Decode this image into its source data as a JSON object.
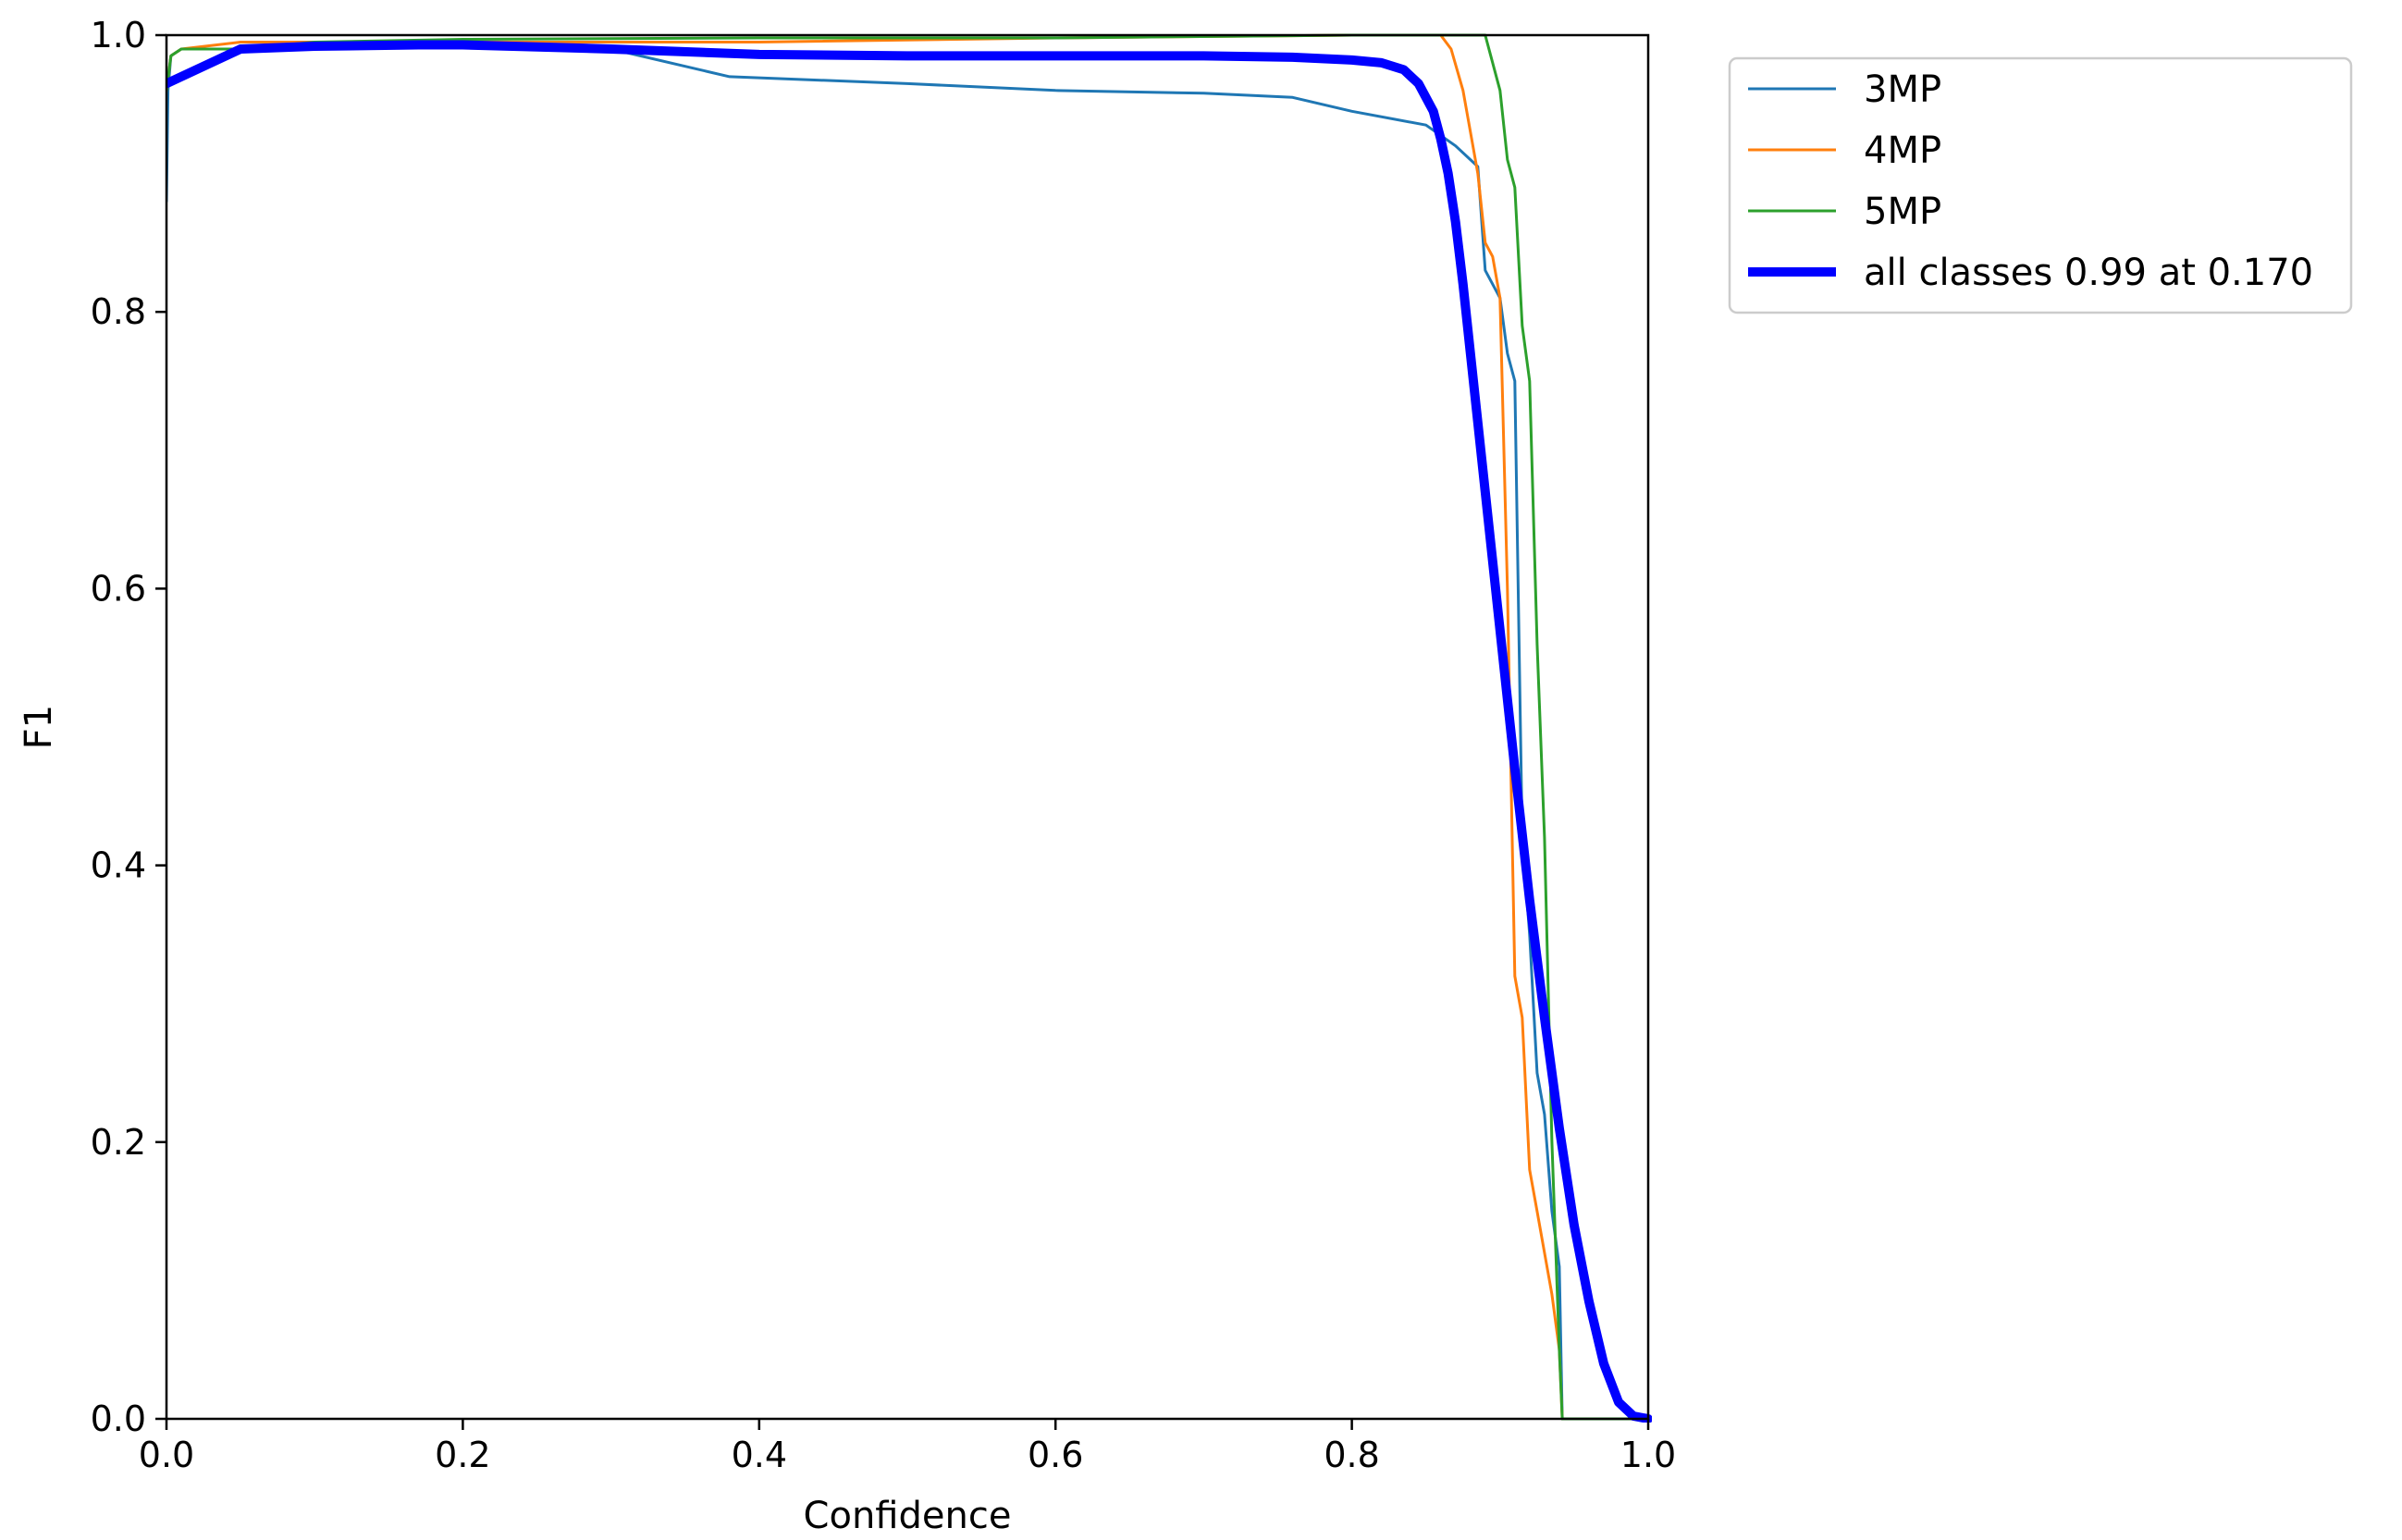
{
  "chart_data": {
    "type": "line",
    "xlabel": "Confidence",
    "ylabel": "F1",
    "xlim": [
      0.0,
      1.0
    ],
    "ylim": [
      0.0,
      1.0
    ],
    "xticks": [
      "0.0",
      "0.2",
      "0.4",
      "0.6",
      "0.8",
      "1.0"
    ],
    "yticks": [
      "0.0",
      "0.2",
      "0.4",
      "0.6",
      "0.8",
      "1.0"
    ],
    "grid": false,
    "legend_position": "outside-top-right",
    "series": [
      {
        "name": "3MP",
        "color": "#1f77b4",
        "width": "thin",
        "x": [
          0.0,
          0.001,
          0.003,
          0.01,
          0.05,
          0.1,
          0.2,
          0.3,
          0.38,
          0.5,
          0.6,
          0.7,
          0.76,
          0.8,
          0.85,
          0.87,
          0.885,
          0.89,
          0.9,
          0.905,
          0.91,
          0.915,
          0.92,
          0.925,
          0.93,
          0.935,
          0.94,
          0.942,
          0.945,
          0.97,
          1.0
        ],
        "y": [
          0.88,
          0.96,
          0.985,
          0.99,
          0.99,
          0.995,
          0.995,
          0.99,
          0.97,
          0.965,
          0.96,
          0.958,
          0.955,
          0.945,
          0.935,
          0.92,
          0.905,
          0.83,
          0.81,
          0.77,
          0.75,
          0.42,
          0.35,
          0.25,
          0.22,
          0.15,
          0.11,
          0.0,
          0.0,
          0.0,
          0.0
        ]
      },
      {
        "name": "4MP",
        "color": "#ff7f0e",
        "width": "thin",
        "x": [
          0.0,
          0.003,
          0.01,
          0.05,
          0.1,
          0.2,
          0.4,
          0.6,
          0.8,
          0.86,
          0.867,
          0.875,
          0.885,
          0.89,
          0.895,
          0.9,
          0.905,
          0.91,
          0.915,
          0.92,
          0.925,
          0.93,
          0.935,
          0.94,
          0.942,
          1.0
        ],
        "y": [
          0.96,
          0.985,
          0.99,
          0.995,
          0.995,
          0.995,
          0.995,
          0.998,
          1.0,
          1.0,
          0.99,
          0.96,
          0.9,
          0.85,
          0.84,
          0.81,
          0.6,
          0.32,
          0.29,
          0.18,
          0.15,
          0.12,
          0.09,
          0.05,
          0.0,
          0.0
        ]
      },
      {
        "name": "5MP",
        "color": "#2ca02c",
        "width": "thin",
        "x": [
          0.0,
          0.003,
          0.01,
          0.05,
          0.1,
          0.2,
          0.4,
          0.6,
          0.8,
          0.89,
          0.895,
          0.9,
          0.905,
          0.91,
          0.915,
          0.92,
          0.925,
          0.93,
          0.935,
          0.94,
          0.942,
          1.0
        ],
        "y": [
          0.96,
          0.985,
          0.99,
          0.99,
          0.995,
          0.997,
          0.998,
          0.998,
          1.0,
          1.0,
          0.98,
          0.96,
          0.91,
          0.89,
          0.79,
          0.75,
          0.56,
          0.42,
          0.2,
          0.05,
          0.0,
          0.0
        ]
      },
      {
        "name": "all classes 0.99 at 0.170",
        "color": "#0000ff",
        "width": "thick",
        "x": [
          0.0,
          0.05,
          0.1,
          0.17,
          0.2,
          0.3,
          0.4,
          0.5,
          0.6,
          0.7,
          0.76,
          0.8,
          0.82,
          0.835,
          0.845,
          0.855,
          0.86,
          0.865,
          0.87,
          0.875,
          0.88,
          0.885,
          0.89,
          0.9,
          0.91,
          0.92,
          0.93,
          0.94,
          0.95,
          0.96,
          0.97,
          0.98,
          0.99,
          1.0
        ],
        "y": [
          0.965,
          0.99,
          0.992,
          0.993,
          0.993,
          0.99,
          0.986,
          0.985,
          0.985,
          0.985,
          0.984,
          0.982,
          0.98,
          0.975,
          0.965,
          0.945,
          0.925,
          0.9,
          0.865,
          0.82,
          0.77,
          0.72,
          0.67,
          0.57,
          0.47,
          0.375,
          0.29,
          0.21,
          0.14,
          0.085,
          0.04,
          0.012,
          0.002,
          0.0
        ]
      }
    ]
  }
}
